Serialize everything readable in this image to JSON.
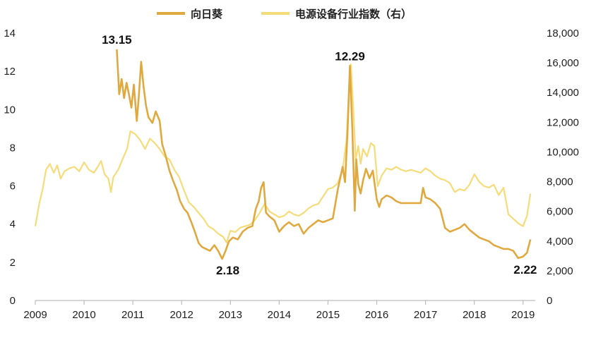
{
  "chart_data": {
    "type": "line",
    "title": "",
    "xlabel": "",
    "ylabel": "",
    "ylabel_right": "",
    "xlim": [
      2009.0,
      2019.25
    ],
    "ylim": [
      0,
      14
    ],
    "ylim_right": [
      0,
      18000
    ],
    "x_ticks": [
      "2009",
      "2010",
      "2011",
      "2012",
      "2013",
      "2014",
      "2015",
      "2016",
      "2017",
      "2018",
      "2019"
    ],
    "y_ticks_left": [
      "0",
      "2",
      "4",
      "6",
      "8",
      "10",
      "12",
      "14"
    ],
    "y_ticks_right": [
      "0",
      "2,000",
      "4,000",
      "6,000",
      "8,000",
      "10,000",
      "12,000",
      "14,000",
      "16,000",
      "18,000"
    ],
    "grid": false,
    "legend_position": "top-center",
    "series": [
      {
        "name": "向日葵",
        "axis": "left",
        "color": "#E0A940",
        "x": [
          2010.67,
          2010.72,
          2010.77,
          2010.82,
          2010.87,
          2010.92,
          2010.97,
          2011.02,
          2011.08,
          2011.12,
          2011.17,
          2011.22,
          2011.27,
          2011.32,
          2011.4,
          2011.47,
          2011.55,
          2011.6,
          2011.67,
          2011.75,
          2011.82,
          2011.9,
          2011.97,
          2012.05,
          2012.12,
          2012.2,
          2012.27,
          2012.35,
          2012.42,
          2012.5,
          2012.58,
          2012.67,
          2012.75,
          2012.83,
          2012.9,
          2012.97,
          2013.05,
          2013.15,
          2013.25,
          2013.35,
          2013.45,
          2013.52,
          2013.58,
          2013.63,
          2013.68,
          2013.73,
          2013.8,
          2013.9,
          2014.0,
          2014.1,
          2014.2,
          2014.3,
          2014.4,
          2014.5,
          2014.6,
          2014.7,
          2014.8,
          2014.9,
          2015.0,
          2015.1,
          2015.2,
          2015.25,
          2015.3,
          2015.35,
          2015.4,
          2015.45,
          2015.5,
          2015.55,
          2015.58,
          2015.62,
          2015.67,
          2015.72,
          2015.78,
          2015.85,
          2015.92,
          2016.0,
          2016.05,
          2016.1,
          2016.2,
          2016.3,
          2016.4,
          2016.5,
          2016.7,
          2016.9,
          2016.95,
          2017.0,
          2017.1,
          2017.2,
          2017.3,
          2017.4,
          2017.5,
          2017.6,
          2017.7,
          2017.8,
          2017.9,
          2018.0,
          2018.1,
          2018.2,
          2018.3,
          2018.4,
          2018.5,
          2018.6,
          2018.7,
          2018.8,
          2018.9,
          2019.0,
          2019.08,
          2019.15
        ],
        "values": [
          13.15,
          10.8,
          11.6,
          10.6,
          11.4,
          10.8,
          10.1,
          11.3,
          9.4,
          10.6,
          12.5,
          11.2,
          10.2,
          9.6,
          9.3,
          9.9,
          9.4,
          8.2,
          7.6,
          6.8,
          6.3,
          5.8,
          5.2,
          4.8,
          4.6,
          4.1,
          3.6,
          3.0,
          2.8,
          2.7,
          2.6,
          2.9,
          2.6,
          2.18,
          2.6,
          3.1,
          3.3,
          3.2,
          3.6,
          3.8,
          3.9,
          4.8,
          5.2,
          5.9,
          6.2,
          4.6,
          4.4,
          4.2,
          3.6,
          3.9,
          4.1,
          3.9,
          4.0,
          3.5,
          3.8,
          4.0,
          4.2,
          4.1,
          4.2,
          4.3,
          5.8,
          6.4,
          7.0,
          6.2,
          8.8,
          12.29,
          8.9,
          4.7,
          7.4,
          6.1,
          5.6,
          6.3,
          6.9,
          6.4,
          6.8,
          5.3,
          4.9,
          5.3,
          5.5,
          5.4,
          5.2,
          5.1,
          5.1,
          5.1,
          5.9,
          5.4,
          5.3,
          5.1,
          4.8,
          3.8,
          3.6,
          3.7,
          3.8,
          4.0,
          3.7,
          3.5,
          3.3,
          3.2,
          3.1,
          2.9,
          2.8,
          2.7,
          2.7,
          2.6,
          2.22,
          2.3,
          2.5,
          3.2
        ]
      },
      {
        "name": "电源设备行业指数（右）",
        "axis": "right",
        "color": "#F5DC7A",
        "x": [
          2009.0,
          2009.08,
          2009.15,
          2009.22,
          2009.3,
          2009.38,
          2009.45,
          2009.52,
          2009.6,
          2009.7,
          2009.8,
          2009.9,
          2010.0,
          2010.1,
          2010.2,
          2010.28,
          2010.35,
          2010.42,
          2010.5,
          2010.55,
          2010.6,
          2010.7,
          2010.8,
          2010.88,
          2010.95,
          2011.05,
          2011.15,
          2011.25,
          2011.35,
          2011.45,
          2011.55,
          2011.65,
          2011.75,
          2011.85,
          2011.95,
          2012.05,
          2012.15,
          2012.25,
          2012.35,
          2012.45,
          2012.55,
          2012.65,
          2012.75,
          2012.85,
          2012.92,
          2013.0,
          2013.1,
          2013.2,
          2013.3,
          2013.4,
          2013.5,
          2013.6,
          2013.7,
          2013.8,
          2013.9,
          2014.0,
          2014.1,
          2014.2,
          2014.3,
          2014.4,
          2014.5,
          2014.6,
          2014.7,
          2014.8,
          2014.9,
          2015.0,
          2015.1,
          2015.2,
          2015.3,
          2015.38,
          2015.43,
          2015.47,
          2015.52,
          2015.57,
          2015.62,
          2015.67,
          2015.72,
          2015.8,
          2015.88,
          2015.95,
          2016.02,
          2016.1,
          2016.2,
          2016.3,
          2016.4,
          2016.5,
          2016.6,
          2016.7,
          2016.8,
          2016.9,
          2017.0,
          2017.1,
          2017.2,
          2017.3,
          2017.4,
          2017.5,
          2017.6,
          2017.7,
          2017.8,
          2017.9,
          2018.0,
          2018.1,
          2018.2,
          2018.3,
          2018.4,
          2018.5,
          2018.6,
          2018.7,
          2018.8,
          2018.9,
          2019.0,
          2019.08,
          2019.15
        ],
        "values": [
          5000,
          6500,
          7500,
          8800,
          9200,
          8600,
          9100,
          8200,
          8700,
          8900,
          9000,
          8700,
          9300,
          8800,
          8600,
          9000,
          9400,
          8500,
          8200,
          7300,
          8300,
          8800,
          9600,
          10200,
          11400,
          11200,
          10800,
          10200,
          10900,
          10600,
          10200,
          9700,
          9500,
          8800,
          8300,
          7400,
          6600,
          6300,
          5900,
          5500,
          5000,
          4800,
          4500,
          4300,
          3900,
          4700,
          4600,
          4900,
          5000,
          5100,
          5400,
          5900,
          6500,
          6000,
          5800,
          5600,
          5700,
          6000,
          5800,
          5700,
          5900,
          6200,
          6400,
          6500,
          7000,
          7500,
          7600,
          7900,
          8800,
          10800,
          14200,
          15900,
          12800,
          9500,
          10400,
          9200,
          10200,
          9700,
          10600,
          10400,
          7700,
          8400,
          8900,
          8800,
          9000,
          8800,
          8700,
          8800,
          8700,
          8600,
          8900,
          8700,
          8400,
          8200,
          8100,
          7900,
          7300,
          7500,
          7400,
          7800,
          8500,
          8000,
          7700,
          7600,
          7800,
          7100,
          7600,
          5800,
          5500,
          5200,
          5000,
          5700,
          7200
        ]
      }
    ],
    "annotations": [
      {
        "text": "13.15",
        "x": 2010.67,
        "y": 13.15
      },
      {
        "text": "2.18",
        "x": 2012.83,
        "y": 2.18
      },
      {
        "text": "12.29",
        "x": 2015.45,
        "y": 12.29
      },
      {
        "text": "2.22",
        "x": 2018.9,
        "y": 2.22
      }
    ]
  }
}
